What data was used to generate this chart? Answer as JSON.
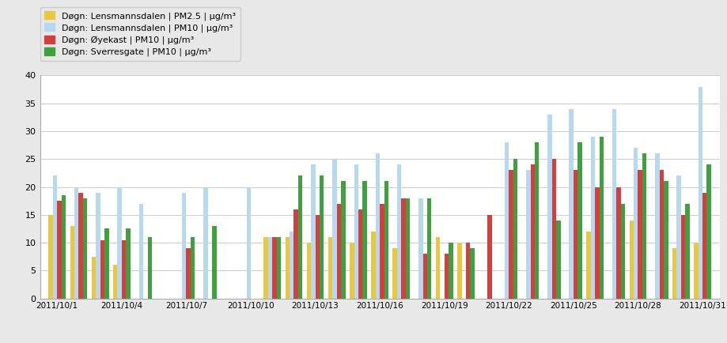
{
  "dates": [
    "2011/10/1",
    "2011/10/2",
    "2011/10/3",
    "2011/10/4",
    "2011/10/5",
    "2011/10/6",
    "2011/10/7",
    "2011/10/8",
    "2011/10/9",
    "2011/10/10",
    "2011/10/11",
    "2011/10/12",
    "2011/10/13",
    "2011/10/14",
    "2011/10/15",
    "2011/10/16",
    "2011/10/17",
    "2011/10/18",
    "2011/10/19",
    "2011/10/20",
    "2011/10/21",
    "2011/10/22",
    "2011/10/23",
    "2011/10/24",
    "2011/10/25",
    "2011/10/26",
    "2011/10/27",
    "2011/10/28",
    "2011/10/29",
    "2011/10/30",
    "2011/10/31"
  ],
  "pm25_lens": [
    15,
    13,
    7.5,
    6,
    null,
    null,
    null,
    null,
    null,
    null,
    11,
    11,
    10,
    11,
    10,
    12,
    9,
    null,
    11,
    10,
    null,
    null,
    null,
    null,
    null,
    12,
    null,
    14,
    null,
    9,
    10
  ],
  "pm10_lens": [
    22,
    20,
    19,
    20,
    17,
    null,
    19,
    20,
    null,
    20,
    11,
    12,
    24,
    25,
    24,
    26,
    24,
    18,
    null,
    null,
    null,
    28,
    23,
    33,
    34,
    29,
    34,
    27,
    26,
    22,
    38
  ],
  "pm10_oye": [
    17.5,
    19,
    10.5,
    10.5,
    null,
    null,
    9,
    null,
    null,
    null,
    11,
    16,
    15,
    17,
    16,
    17,
    18,
    8,
    8,
    10,
    15,
    23,
    24,
    25,
    23,
    20,
    20,
    23,
    23,
    15,
    19
  ],
  "pm10_sver": [
    18.5,
    18,
    12.5,
    12.5,
    11,
    null,
    11,
    13,
    null,
    null,
    11,
    22,
    22,
    21,
    21,
    21,
    18,
    18,
    10,
    9,
    null,
    25,
    28,
    14,
    28,
    29,
    17,
    26,
    21,
    17,
    24
  ],
  "color_pm25": "#e8c840",
  "color_pm10_lens": "#b8d8f0",
  "color_pm10_oye": "#d04040",
  "color_pm10_sver": "#40a040",
  "legend_labels": [
    "Døgn: Lensmannsdalen | PM2.5 | µg/m³",
    "Døgn: Lensmannsdalen | PM10 | µg/m³",
    "Døgn: Øyekast | PM10 | µg/m³",
    "Døgn: Sverresgate | PM10 | µg/m³"
  ],
  "xlabel_dates": [
    "2011/10/1",
    "2011/10/4",
    "2011/10/7",
    "2011/10/10",
    "2011/10/13",
    "2011/10/16",
    "2011/10/19",
    "2011/10/22",
    "2011/10/25",
    "2011/10/28",
    "2011/10/31"
  ],
  "ylim": [
    0,
    40
  ],
  "yticks": [
    0,
    5,
    10,
    15,
    20,
    25,
    30,
    35,
    40
  ],
  "bg_color": "#e8e8e8",
  "plot_bg": "#ffffff",
  "grid_color": "#cccccc",
  "bar_width": 0.2
}
